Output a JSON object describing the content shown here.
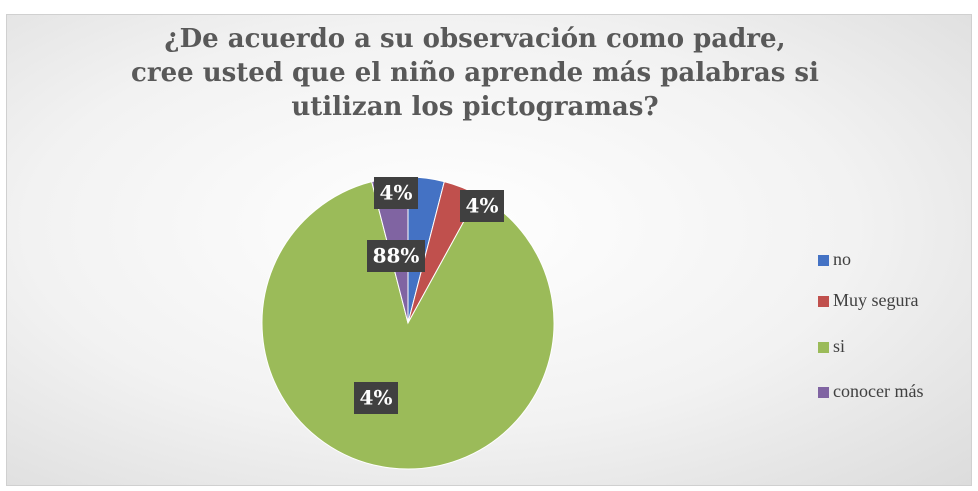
{
  "chart_data": {
    "type": "pie",
    "title": "¿De acuerdo a su observación como padre, cree usted que el niño aprende más palabras si utilizan los pictogramas?",
    "categories": [
      "no",
      "Muy segura",
      "si",
      "conocer más"
    ],
    "values": [
      4,
      4,
      88,
      4
    ],
    "value_labels": [
      "4%",
      "4%",
      "88%",
      "4%"
    ],
    "colors": [
      "#4472c4",
      "#c0504d",
      "#9bbb59",
      "#8064a2"
    ],
    "legend": "right"
  }
}
